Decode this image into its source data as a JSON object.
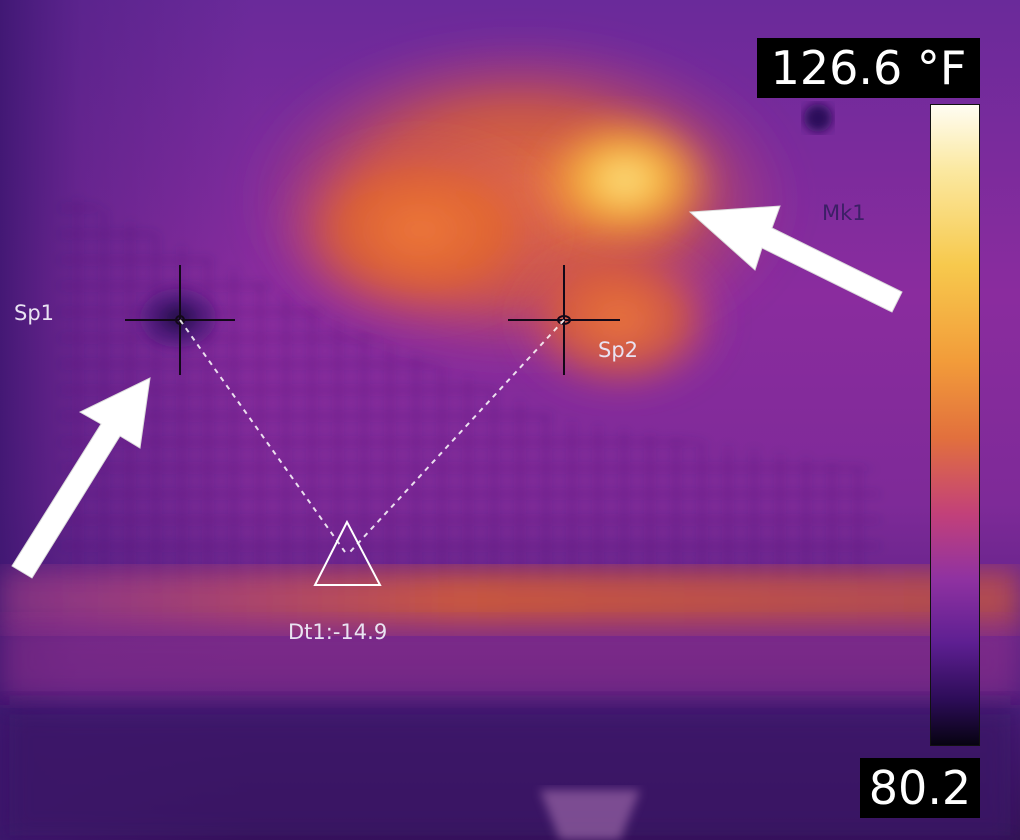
{
  "palette": {
    "cold": "#1a0a3c",
    "cool": "#5a1a8c",
    "mid": "#b0359a",
    "warm": "#e0622e",
    "hot": "#f7a735",
    "hottest": "#fff4b8"
  },
  "scale": {
    "max_label": "126.6 °F",
    "min_label": "80.2",
    "max_value": 126.6,
    "min_value": 80.2,
    "unit": "°F"
  },
  "markers": {
    "sp1": "Sp1",
    "sp2": "Sp2",
    "mk1": "Mk1",
    "dt1": "Dt1:-14.9"
  },
  "annotations": {
    "arrow_count": 2,
    "arrow_color": "#ffffff"
  }
}
